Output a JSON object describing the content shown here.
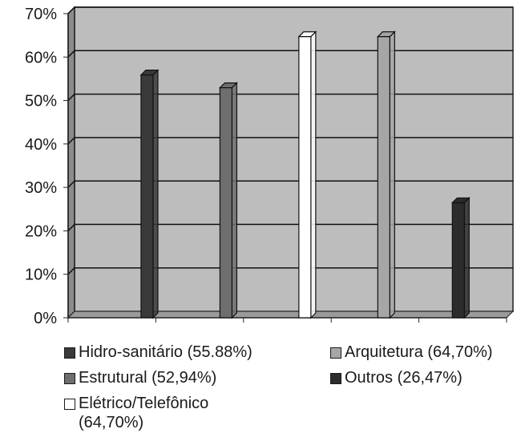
{
  "chart_data": {
    "type": "bar",
    "y_ticks": [
      "0%",
      "10%",
      "20%",
      "30%",
      "40%",
      "50%",
      "60%",
      "70%"
    ],
    "ylim": [
      0,
      70
    ],
    "grid": true,
    "legend_position": "bottom",
    "series": [
      {
        "name": "Hidro-sanitário (55.88%)",
        "value": 55.88,
        "color": "#3a3a3a"
      },
      {
        "name": "Estrutural (52,94%)",
        "value": 52.94,
        "color": "#6e6e6e"
      },
      {
        "name": "Elétrico/Telefônico\n(64,70%)",
        "value": 64.7,
        "color": "#ffffff"
      },
      {
        "name": "Arquitetura (64,70%)",
        "value": 64.7,
        "color": "#a6a6a6"
      },
      {
        "name": "Outros (26,47%)",
        "value": 26.47,
        "color": "#2c2c2c"
      }
    ]
  }
}
